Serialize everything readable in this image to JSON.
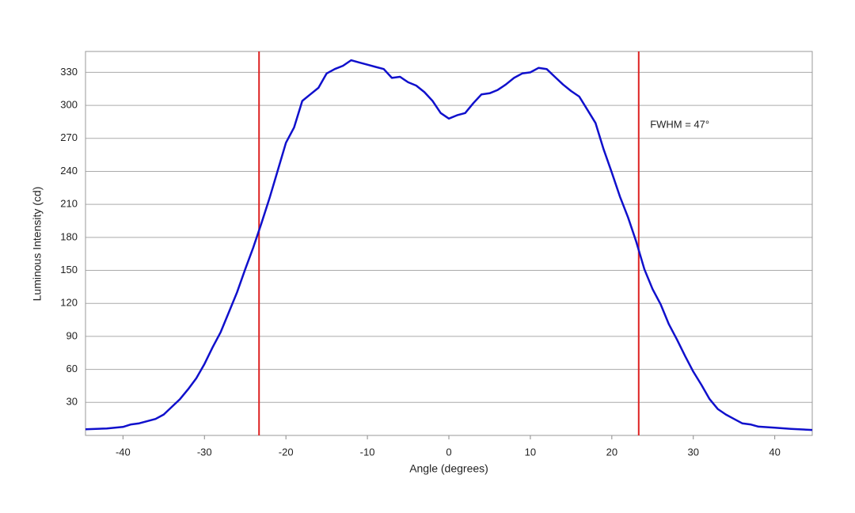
{
  "chart_data": {
    "type": "line",
    "xlabel": "Angle (degrees)",
    "ylabel": "Luminous Intensity (cd)",
    "x": [
      -44.6,
      -42,
      -40,
      -39,
      -38,
      -37,
      -36,
      -35,
      -34,
      -33,
      -32,
      -31,
      -30,
      -29,
      -28,
      -27,
      -26,
      -25,
      -24,
      -23,
      -22,
      -21,
      -20,
      -19,
      -18,
      -17,
      -16,
      -15,
      -14,
      -13,
      -12,
      -11,
      -10,
      -9,
      -8,
      -7,
      -6,
      -5,
      -4,
      -3,
      -2,
      -1,
      0,
      1,
      2,
      3,
      4,
      5,
      6,
      7,
      8,
      9,
      10,
      11,
      12,
      13,
      14,
      15,
      16,
      17,
      18,
      19,
      20,
      21,
      22,
      23,
      24,
      25,
      26,
      27,
      28,
      29,
      30,
      31,
      32,
      33,
      34,
      35,
      36,
      37,
      38,
      40,
      42,
      44.6
    ],
    "series": [
      {
        "color": "#1010cc",
        "values": [
          5.6,
          6.3,
          7.7,
          10,
          11,
          13,
          15,
          19,
          26,
          33,
          42,
          52,
          65,
          80,
          94,
          112,
          130,
          151,
          171,
          193,
          216,
          241,
          266,
          280,
          304,
          310,
          316,
          329,
          333,
          336,
          341,
          339,
          337,
          335,
          333,
          325,
          326,
          321,
          318,
          312,
          304,
          293,
          288,
          291,
          293,
          302,
          310,
          311,
          314,
          319,
          325,
          329,
          330,
          334,
          333,
          326,
          319,
          313,
          308,
          296,
          284,
          260,
          239,
          217,
          198,
          176,
          151,
          133,
          119,
          101,
          87,
          72,
          58,
          46,
          33,
          24,
          19,
          15,
          11,
          10,
          8,
          7,
          6,
          5
        ]
      }
    ],
    "xlim": [
      -44.6,
      44.6
    ],
    "xticks": [
      -40,
      -30,
      -20,
      -10,
      0,
      10,
      20,
      30,
      40
    ],
    "ylim": [
      0,
      349
    ],
    "yticks": [
      30,
      60,
      90,
      120,
      150,
      180,
      210,
      240,
      270,
      300,
      330
    ],
    "grid": true,
    "markers": [
      -23.3,
      23.3
    ],
    "marker_color": "#dd2222",
    "annotation": {
      "text": "FWHM = 47°",
      "x": 24.7,
      "y": 282
    }
  }
}
